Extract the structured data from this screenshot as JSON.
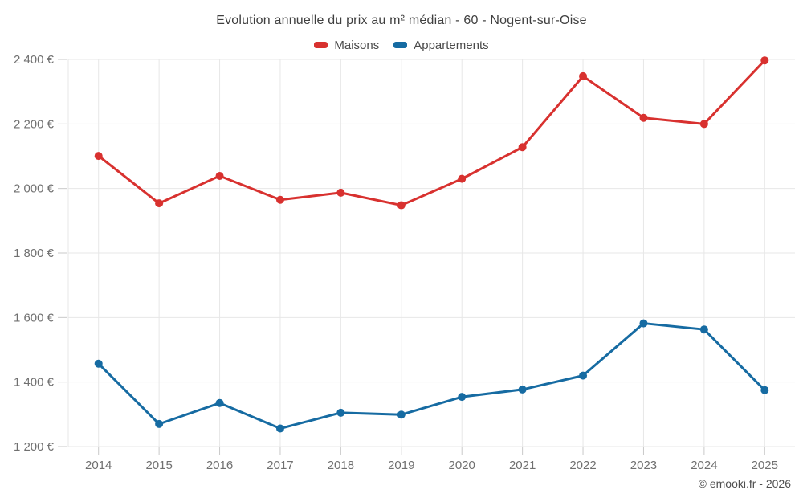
{
  "page": {
    "title": "Evolution annuelle du prix au m² médian - 60 - Nogent-sur-Oise",
    "copyright": "© emooki.fr - 2026"
  },
  "legend": {
    "items": [
      {
        "label": "Maisons",
        "color": "#d8312f"
      },
      {
        "label": "Appartements",
        "color": "#166ba2"
      }
    ]
  },
  "chart_data": {
    "type": "line",
    "title": "Evolution annuelle du prix au m² médian - 60 - Nogent-sur-Oise",
    "categories": [
      "2014",
      "2015",
      "2016",
      "2017",
      "2018",
      "2019",
      "2020",
      "2021",
      "2022",
      "2023",
      "2024",
      "2025"
    ],
    "series": [
      {
        "name": "Maisons",
        "color": "#d8312f",
        "values": [
          2101,
          1954,
          2039,
          1965,
          1987,
          1948,
          2030,
          2128,
          2348,
          2219,
          2200,
          2397
        ]
      },
      {
        "name": "Appartements",
        "color": "#166ba2",
        "values": [
          1457,
          1270,
          1335,
          1256,
          1305,
          1299,
          1354,
          1377,
          1420,
          1582,
          1563,
          1375
        ]
      }
    ],
    "ylim": [
      1200,
      2400
    ],
    "ytick_step": 200,
    "ytick_suffix": " €",
    "grid": true,
    "legend_position": "top",
    "marker_radius": 5,
    "line_width": 3
  },
  "style": {
    "grid_color": "#e7e7e7",
    "tick_color": "#c9c9c9",
    "axis_label_color": "#707070",
    "title_color": "#3f3f3f",
    "legend_text_color": "#4a4a4a",
    "copyright_color": "#4f4f4f",
    "background": "#ffffff"
  }
}
